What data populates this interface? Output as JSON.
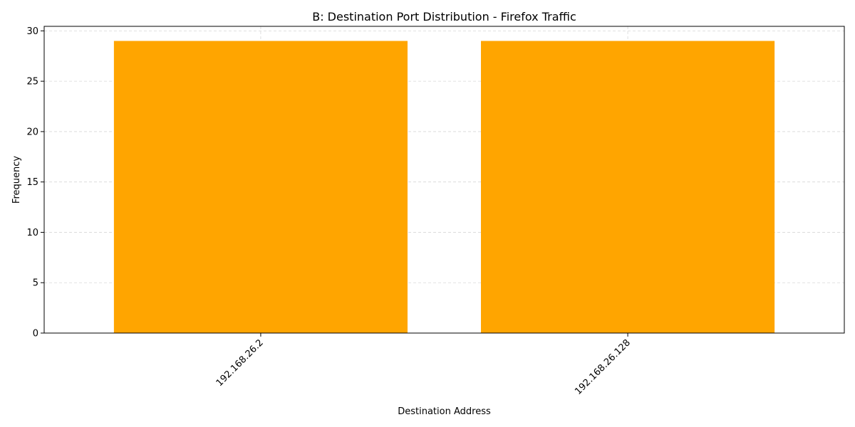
{
  "chart_data": {
    "type": "bar",
    "title": "B: Destination Port Distribution - Firefox Traffic",
    "xlabel": "Destination Address",
    "ylabel": "Frequency",
    "categories": [
      "192.168.26.2",
      "192.168.26.128"
    ],
    "values": [
      29,
      29
    ],
    "ylim": [
      0,
      30.45
    ],
    "yticks": [
      0,
      5,
      10,
      15,
      20,
      25,
      30
    ],
    "grid": true,
    "bar_color": "#FFA500",
    "x_tick_rotation": 45
  }
}
